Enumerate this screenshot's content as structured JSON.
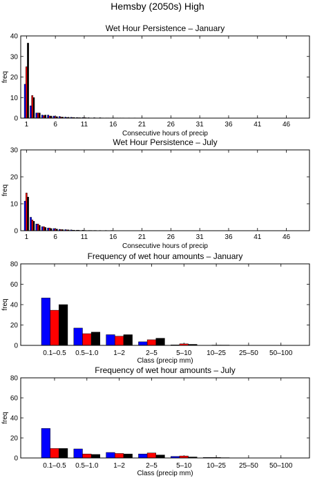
{
  "figure_title": "Hemsby (2050s) High",
  "colors": {
    "blue": "#0000ff",
    "red": "#ff0000",
    "black": "#000000"
  },
  "chart_data": [
    {
      "type": "bar",
      "title": "Wet Hour Persistence – January",
      "xlabel": "Consecutive hours of precip",
      "ylabel": "freq",
      "xlim": [
        0,
        50
      ],
      "ylim": [
        0,
        40
      ],
      "xticks": [
        1,
        6,
        11,
        16,
        21,
        26,
        31,
        36,
        41,
        46
      ],
      "yticks": [
        0,
        10,
        20,
        30,
        40
      ],
      "x": [
        1,
        2,
        3,
        4,
        5,
        6,
        7,
        8,
        9,
        10,
        11,
        12,
        13,
        14,
        15,
        16,
        17,
        18,
        19,
        20
      ],
      "series": [
        {
          "color": "#0000ff",
          "values": [
            16.5,
            6,
            2.5,
            1.5,
            1.5,
            1,
            0.8,
            0.5,
            0.4,
            0.3,
            0.3,
            0.2,
            0.2,
            0.2,
            0.1,
            0.1,
            0.1,
            0.1,
            0.1,
            0.1
          ]
        },
        {
          "color": "#ff0000",
          "values": [
            25,
            11,
            2.5,
            1.2,
            1,
            0.7,
            0.5,
            0.3,
            0.3,
            0.2,
            0.2,
            0.1,
            0.1,
            0.1,
            0.1,
            0.1,
            0,
            0,
            0,
            0
          ]
        },
        {
          "color": "#000000",
          "values": [
            36.5,
            10,
            2.5,
            1.5,
            1,
            0.7,
            0.5,
            0.4,
            0.3,
            0.2,
            0.2,
            0.1,
            0.1,
            0.1,
            0.1,
            0.1,
            0.1,
            0,
            0,
            0
          ]
        }
      ]
    },
    {
      "type": "bar",
      "title": "Wet Hour Persistence – July",
      "xlabel": "Consecutive hours of precip",
      "ylabel": "freq",
      "xlim": [
        0,
        50
      ],
      "ylim": [
        0,
        30
      ],
      "xticks": [
        1,
        6,
        11,
        16,
        21,
        26,
        31,
        36,
        41,
        46
      ],
      "yticks": [
        0,
        10,
        20,
        30
      ],
      "x": [
        1,
        2,
        3,
        4,
        5,
        6,
        7,
        8,
        9,
        10,
        11,
        12,
        13,
        14,
        15,
        16
      ],
      "series": [
        {
          "color": "#0000ff",
          "values": [
            11,
            5,
            2.5,
            1.5,
            1,
            0.8,
            0.5,
            0.4,
            0.3,
            0.2,
            0.2,
            0.1,
            0.1,
            0.1,
            0.1,
            0.1
          ]
        },
        {
          "color": "#ff0000",
          "values": [
            14,
            4,
            2.5,
            1.5,
            1,
            0.6,
            0.4,
            0.3,
            0.2,
            0.2,
            0.1,
            0.1,
            0.1,
            0,
            0,
            0
          ]
        },
        {
          "color": "#000000",
          "values": [
            12.5,
            3.5,
            2,
            1.2,
            0.8,
            0.6,
            0.4,
            0.3,
            0.2,
            0.1,
            0.1,
            0.1,
            0,
            0,
            0,
            0
          ]
        }
      ]
    },
    {
      "type": "bar",
      "title": "Frequency of wet hour amounts – January",
      "xlabel": "Class (precip mm)",
      "ylabel": "freq",
      "ylim": [
        0,
        80
      ],
      "yticks": [
        0,
        20,
        40,
        60,
        80
      ],
      "categories": [
        "0.1–0.5",
        "0.5–1.0",
        "1–2",
        "2–5",
        "5–10",
        "10–25",
        "25–50",
        "50–100"
      ],
      "series": [
        {
          "color": "#0000ff",
          "values": [
            46.5,
            17,
            10.5,
            3.5,
            0.5,
            0.1,
            0,
            0
          ]
        },
        {
          "color": "#ff0000",
          "values": [
            34.5,
            11.5,
            9,
            5.5,
            1.5,
            0.3,
            0,
            0
          ]
        },
        {
          "color": "#000000",
          "values": [
            40,
            13,
            10.5,
            7,
            1,
            0.3,
            0,
            0
          ]
        }
      ]
    },
    {
      "type": "bar",
      "title": "Frequency of wet hour amounts – July",
      "xlabel": "Class (precip mm)",
      "ylabel": "freq",
      "ylim": [
        0,
        80
      ],
      "yticks": [
        0,
        20,
        40,
        60,
        80
      ],
      "categories": [
        "0.1–0.5",
        "0.5–1.0",
        "1–2",
        "2–5",
        "5–10",
        "10–25",
        "25–50",
        "50–100"
      ],
      "series": [
        {
          "color": "#0000ff",
          "values": [
            29.5,
            9,
            5.5,
            4,
            1.5,
            0.5,
            0,
            0
          ]
        },
        {
          "color": "#ff0000",
          "values": [
            9.5,
            4,
            4.5,
            5,
            2,
            0.5,
            0,
            0
          ]
        },
        {
          "color": "#000000",
          "values": [
            9.5,
            3.5,
            4,
            3,
            1,
            0.3,
            0,
            0
          ]
        }
      ]
    }
  ]
}
